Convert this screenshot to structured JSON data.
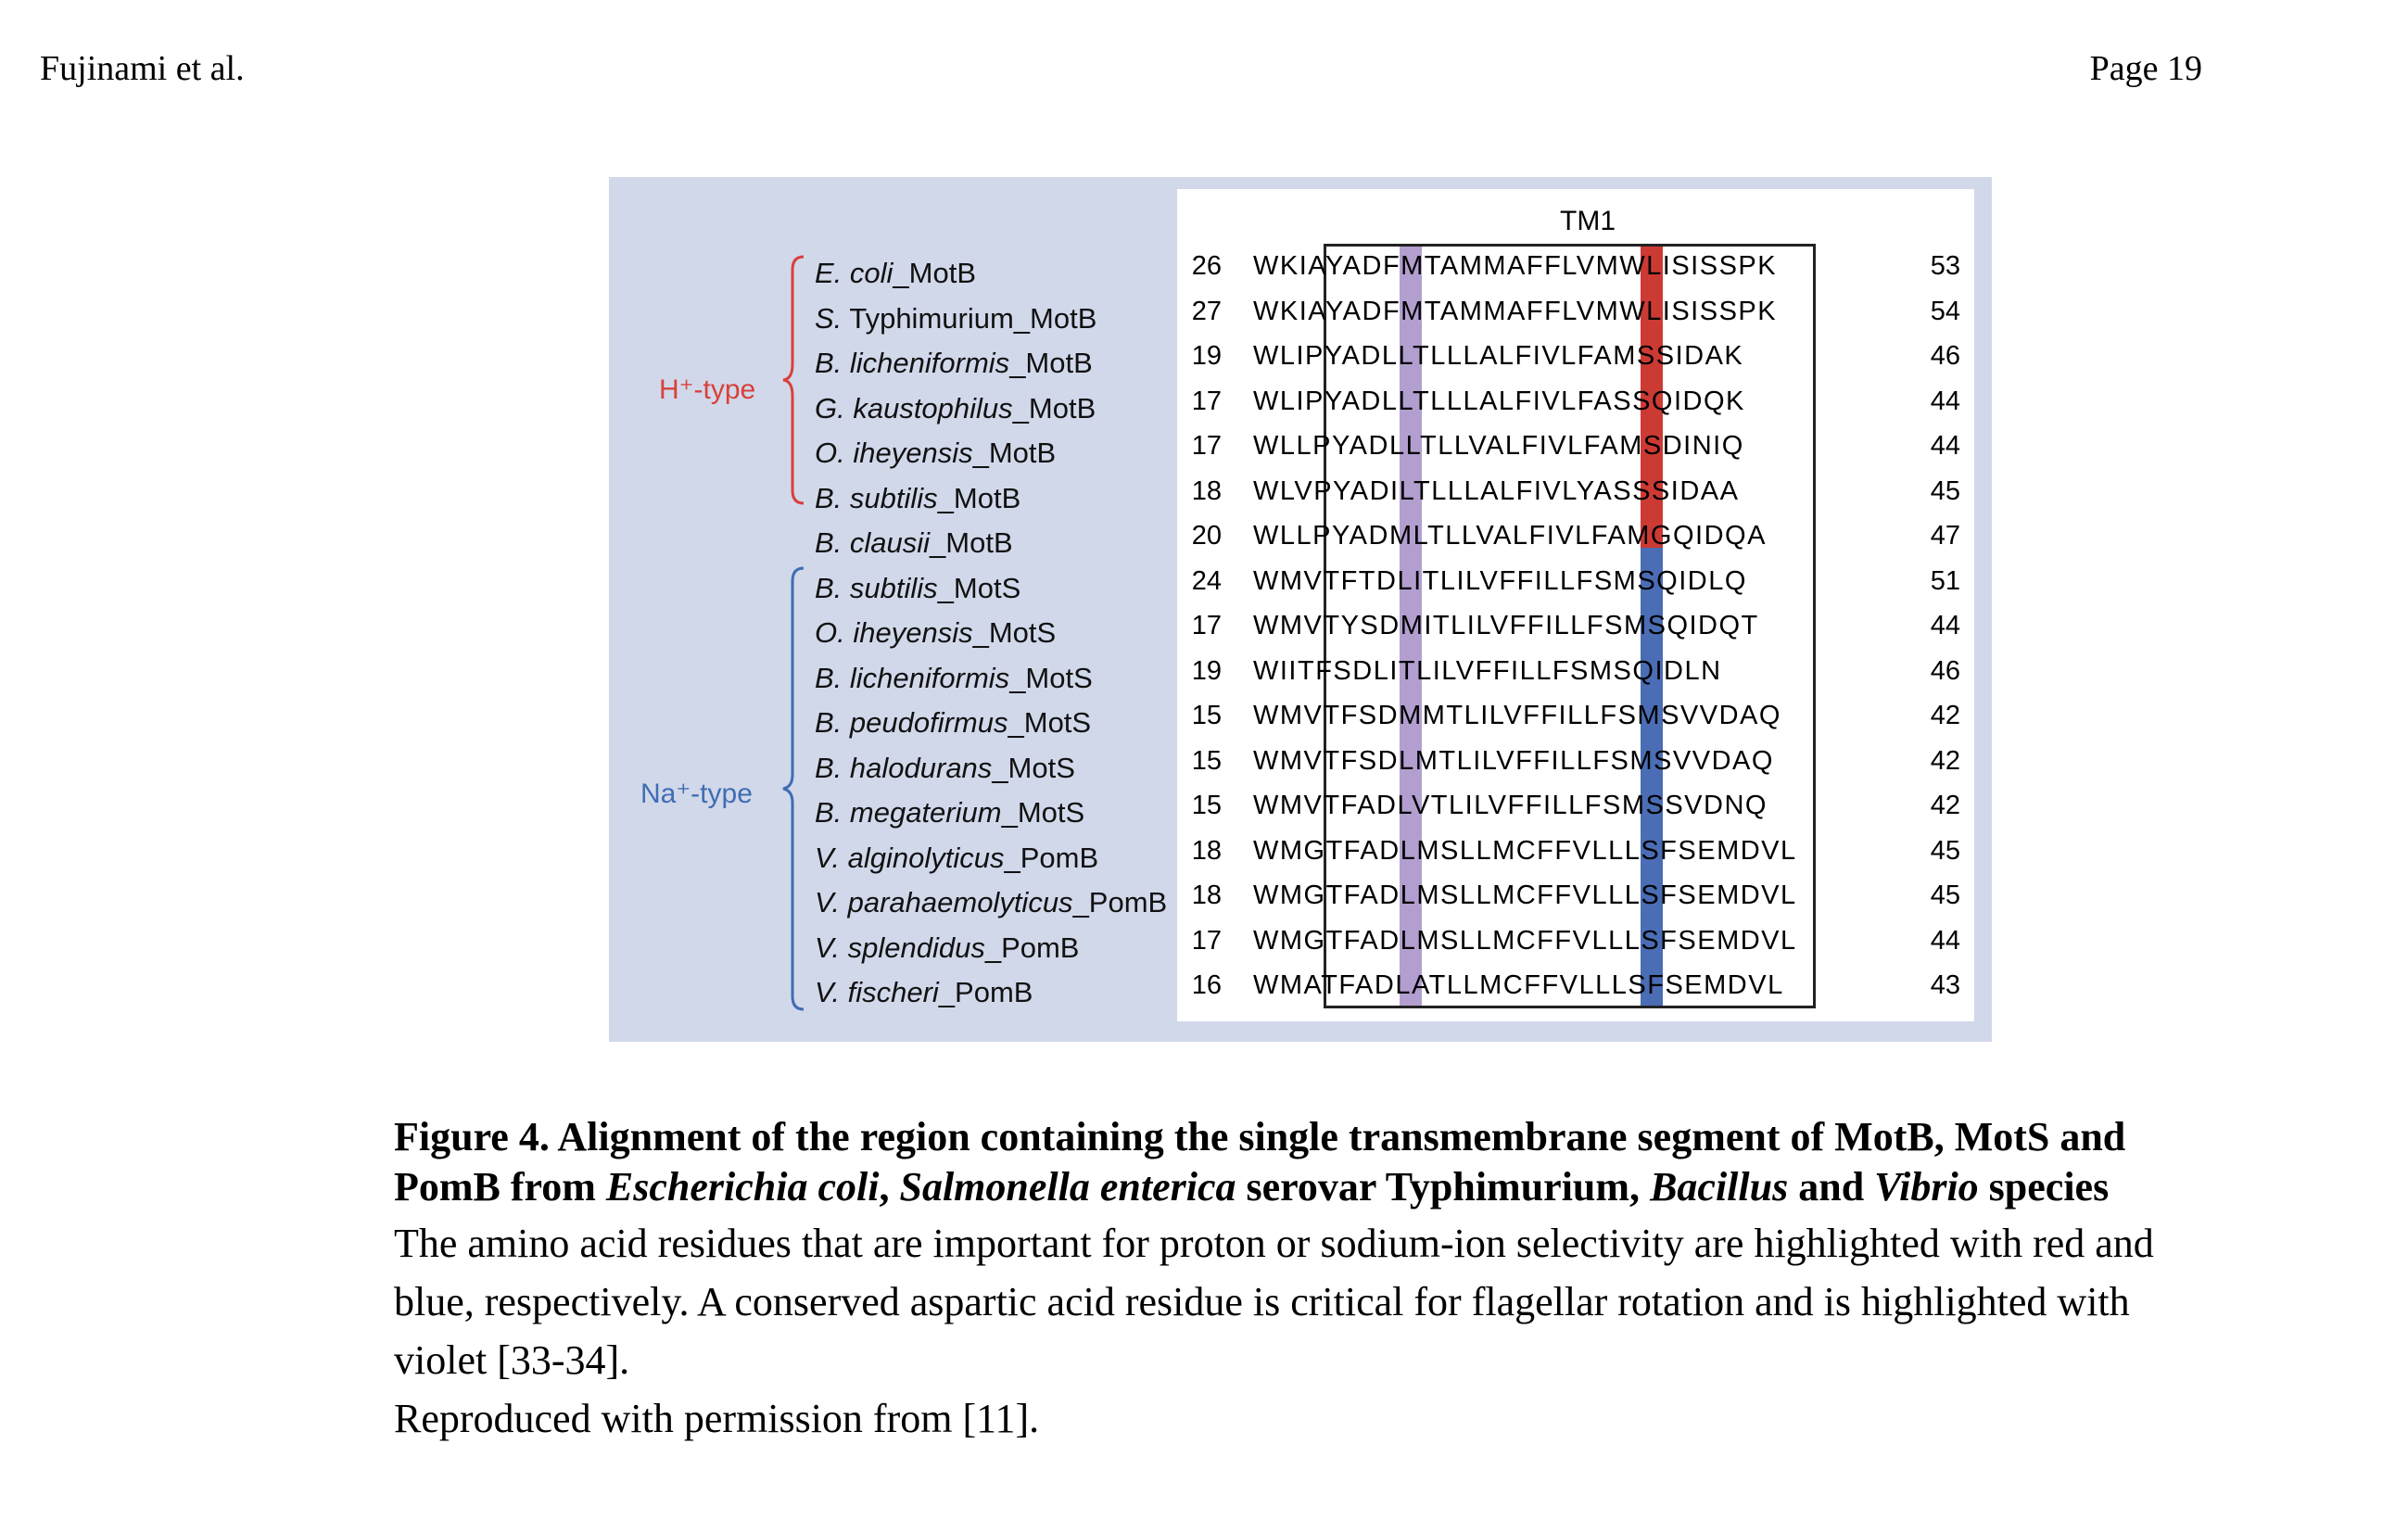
{
  "header": {
    "left": "Fujinami et al.",
    "right": "Page 19"
  },
  "figure": {
    "tm_label": "TM1",
    "groups": [
      {
        "label": "H⁺-type",
        "color": "#d9403a"
      },
      {
        "label": "Na⁺-type",
        "color": "#3f6db3"
      }
    ],
    "rows": [
      {
        "species": "E. coli",
        "suffix": "_MotB",
        "start": "26",
        "seq": "WKIAYADFMTAMMAFFLVMWLISISSPK",
        "end": "53"
      },
      {
        "species": "S.",
        "suffix": " Typhimurium_MotB",
        "start": "27",
        "seq": "WKIAYADFMTAMMAFFLVMWLISISSPK",
        "end": "54"
      },
      {
        "species": "B. licheniformis",
        "suffix": "_MotB",
        "start": "19",
        "seq": "WLIPYADLLTLLLALFIVLFAMSSIDAK",
        "end": "46"
      },
      {
        "species": "G. kaustophilus",
        "suffix": "_MotB",
        "start": "17",
        "seq": "WLIPYADLLTLLLALFIVLFASSQIDQK",
        "end": "44"
      },
      {
        "species": "O. iheyensis",
        "suffix": "_MotB",
        "start": "17",
        "seq": "WLLPYADLLTLLVALFIVLFAMSDINIQ",
        "end": "44"
      },
      {
        "species": "B. subtilis",
        "suffix": "_MotB",
        "start": "18",
        "seq": "WLVPYADILTLLLALFIVLYASSSIDAA",
        "end": "45"
      },
      {
        "species": "B. clausii",
        "suffix": "_MotB",
        "start": "20",
        "seq": "WLLPYADMLTLLVALFIVLFAMGQIDQA",
        "end": "47"
      },
      {
        "species": "B. subtilis",
        "suffix": "_MotS",
        "start": "24",
        "seq": "WMVTFTDLITLILVFFILLFSMSQIDLQ",
        "end": "51"
      },
      {
        "species": "O. iheyensis",
        "suffix": "_MotS",
        "start": "17",
        "seq": "WMVTYSDMITLILVFFILLFSMSQIDQT",
        "end": "44"
      },
      {
        "species": "B. licheniformis",
        "suffix": "_MotS",
        "start": "19",
        "seq": "WIITFSDLITLILVFFILLFSMSQIDLN",
        "end": "46"
      },
      {
        "species": "B. peudofirmus",
        "suffix": "_MotS",
        "start": "15",
        "seq": "WMVTFSDMMTLILVFFILLFSMSVVDAQ",
        "end": "42"
      },
      {
        "species": "B. halodurans",
        "suffix": "_MotS",
        "start": "15",
        "seq": "WMVTFSDLMTLILVFFILLFSMSVVDAQ",
        "end": "42"
      },
      {
        "species": "B. megaterium",
        "suffix": "_MotS",
        "start": "15",
        "seq": "WMVTFADLVTLILVFFILLFSMSSVDNQ",
        "end": "42"
      },
      {
        "species": "V. alginolyticus",
        "suffix": "_PomB",
        "start": "18",
        "seq": "WMGTFADLMSLLMCFFVLLLSFSEMDVL",
        "end": "45"
      },
      {
        "species": "V. parahaemolyticus",
        "suffix": "_PomB",
        "start": "18",
        "seq": "WMGTFADLMSLLMCFFVLLLSFSEMDVL",
        "end": "45"
      },
      {
        "species": "V. splendidus",
        "suffix": "_PomB",
        "start": "17",
        "seq": "WMGTFADLMSLLMCFFVLLLSFSEMDVL",
        "end": "44"
      },
      {
        "species": "V. fischeri",
        "suffix": "_PomB",
        "start": "16",
        "seq": "WMATFADLATLLMCFFVLLLSFSEMDVL",
        "end": "43"
      }
    ]
  },
  "caption": {
    "title_parts": [
      "Figure 4. Alignment of the region containing the single transmembrane segment of MotB, MotS and PomB from ",
      "Escherichia coli",
      ", ",
      "Salmonella enterica",
      " serovar Typhimurium, ",
      "Bacillus",
      " and ",
      "Vibrio",
      " species"
    ],
    "body": [
      "The amino acid residues that are important for proton or sodium-ion selectivity are highlighted with red and blue, respectively. A conserved aspartic acid residue is critical for flagellar rotation and is highlighted with violet [33-34].",
      "Reproduced with permission from [11]."
    ]
  }
}
